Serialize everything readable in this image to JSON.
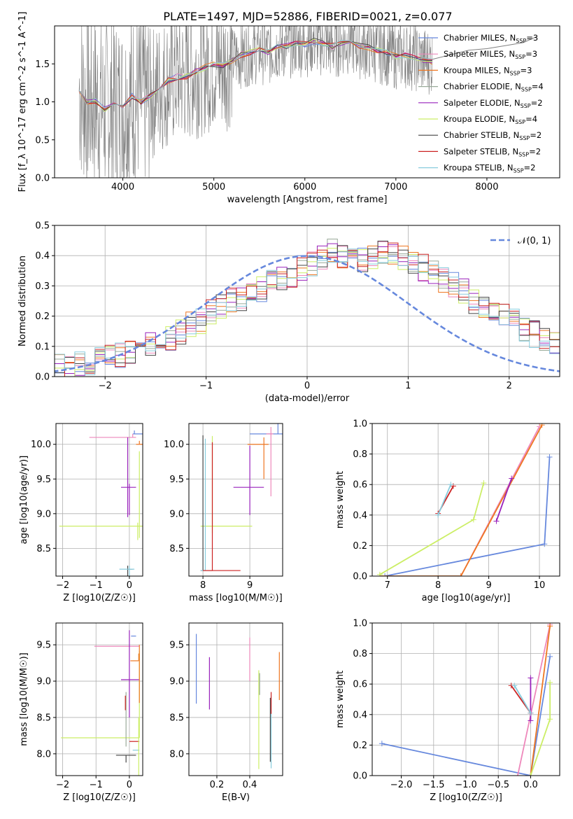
{
  "figure_title": "PLATE=1497, MJD=52886, FIBERID=0021, z=0.077",
  "series_names": [
    "Chabrier MILES, N_SSP=3",
    "Salpeter MILES, N_SSP=3",
    "Kroupa MILES, N_SSP=3",
    "Chabrier ELODIE, N_SSP=4",
    "Salpeter ELODIE, N_SSP=2",
    "Kroupa ELODIE, N_SSP=4",
    "Chabrier STELIB, N_SSP=2",
    "Salpeter STELIB, N_SSP=2",
    "Kroupa STELIB, N_SSP=2"
  ],
  "colors": {
    "chabrier_miles": "#6688dd",
    "salpeter_miles": "#ee88bb",
    "kroupa_miles": "#ee7722",
    "chabrier_elodie": "#99aa99",
    "salpeter_elodie": "#9922bb",
    "kroupa_elodie": "#ccee66",
    "chabrier_stelib": "#444444",
    "salpeter_stelib": "#cc2222",
    "kroupa_stelib": "#88ccdd",
    "data": "#808080",
    "normal": "#6688dd"
  },
  "chart_data": [
    {
      "id": "spectrum",
      "type": "line",
      "xlabel": "wavelength [Angstrom, rest frame]",
      "ylabel": "Flux [f_λ 10^-17 erg cm^-2 s^-1 A^-1]",
      "xlim": [
        3250,
        8800
      ],
      "ylim": [
        0,
        2.0
      ],
      "xticks": [
        4000,
        5000,
        6000,
        7000,
        8000
      ],
      "yticks": [
        0.0,
        0.5,
        1.0,
        1.5
      ],
      "legend_position": "upper right",
      "model_wavelength": [
        3520,
        3600,
        3700,
        3800,
        3900,
        4000,
        4100,
        4200,
        4300,
        4400,
        4500,
        4600,
        4700,
        4800,
        4900,
        5000,
        5100,
        5200,
        5300,
        5400,
        5500,
        5600,
        5700,
        5800,
        5900,
        6000,
        6100,
        6200,
        6300,
        6400,
        6500,
        6600,
        6700,
        6800,
        6900,
        7000,
        7100,
        7200,
        7300,
        7400
      ],
      "model_flux": [
        1.17,
        1.0,
        1.02,
        0.9,
        0.98,
        0.93,
        1.08,
        1.0,
        1.08,
        1.2,
        1.28,
        1.33,
        1.33,
        1.4,
        1.45,
        1.5,
        1.48,
        1.55,
        1.62,
        1.65,
        1.68,
        1.65,
        1.72,
        1.73,
        1.78,
        1.76,
        1.8,
        1.77,
        1.73,
        1.78,
        1.8,
        1.74,
        1.72,
        1.68,
        1.65,
        1.6,
        1.62,
        1.58,
        1.55,
        1.53
      ],
      "data_flux_tail_wavelength": [
        7400,
        7600,
        7800,
        8000,
        8200,
        8400,
        8550
      ],
      "data_flux_tail": [
        1.56,
        1.62,
        1.68,
        1.7,
        1.74,
        1.78,
        1.86
      ]
    },
    {
      "id": "residuals",
      "type": "bar",
      "xlabel": "(data-model)/error",
      "ylabel": "Normed distribution",
      "xlim": [
        -2.5,
        2.5
      ],
      "ylim": [
        0,
        0.5
      ],
      "xticks": [
        -2,
        -1,
        0,
        1,
        2
      ],
      "yticks": [
        0.0,
        0.1,
        0.2,
        0.3,
        0.4,
        0.5
      ],
      "grid": true,
      "legend": "𝒩(0, 1)",
      "bin_width": 0.1,
      "bins_start": -2.6,
      "hist_values": [
        0.02,
        0.03,
        0.03,
        0.04,
        0.05,
        0.06,
        0.06,
        0.07,
        0.08,
        0.09,
        0.11,
        0.12,
        0.13,
        0.15,
        0.17,
        0.18,
        0.21,
        0.23,
        0.25,
        0.26,
        0.28,
        0.29,
        0.31,
        0.33,
        0.33,
        0.36,
        0.37,
        0.39,
        0.41,
        0.4,
        0.39,
        0.39,
        0.4,
        0.41,
        0.4,
        0.39,
        0.38,
        0.36,
        0.34,
        0.32,
        0.3,
        0.28,
        0.25,
        0.23,
        0.21,
        0.2,
        0.18,
        0.15,
        0.14,
        0.12
      ],
      "hist_values_tail": [
        0.11,
        0.1,
        0.09,
        0.08,
        0.07,
        0.06,
        0.05,
        0.05,
        0.04,
        0.03,
        0.03,
        0.02
      ]
    },
    {
      "id": "age_vs_Z",
      "type": "scatter",
      "xlabel": "Z [log10(Z/Z☉)]",
      "ylabel": "age [log10(age/yr)]",
      "xlim": [
        -2.2,
        0.4
      ],
      "ylim": [
        8.1,
        10.3
      ],
      "xticks": [
        -2,
        -1,
        0
      ],
      "yticks": [
        8.5,
        9.0,
        9.5,
        10.0
      ]
    },
    {
      "id": "age_vs_mass",
      "type": "scatter",
      "xlabel": "mass [log10(M/M☉)]",
      "ylabel": "",
      "xlim": [
        7.7,
        9.7
      ],
      "ylim": [
        8.1,
        10.3
      ],
      "xticks": [
        8,
        9
      ],
      "yticks": [
        8.5,
        9.0,
        9.5,
        10.0
      ]
    },
    {
      "id": "massweight_vs_age",
      "type": "line",
      "xlabel": "age [log10(age/yr)]",
      "ylabel": "mass weight",
      "xlim": [
        6.7,
        10.4
      ],
      "ylim": [
        0,
        1.0
      ],
      "xticks": [
        7,
        8,
        9,
        10
      ],
      "yticks": [
        0.0,
        0.2,
        0.4,
        0.6,
        0.8,
        1.0
      ]
    },
    {
      "id": "mass_vs_Z",
      "type": "scatter",
      "xlabel": "Z [log10(Z/Z☉)]",
      "ylabel": "mass [log10(M/M☉)]",
      "xlim": [
        -2.2,
        0.4
      ],
      "ylim": [
        7.7,
        9.8
      ],
      "xticks": [
        -2,
        -1,
        0
      ],
      "yticks": [
        8.0,
        8.5,
        9.0,
        9.5
      ]
    },
    {
      "id": "mass_vs_ebv",
      "type": "scatter",
      "xlabel": "E(B-V)",
      "ylabel": "",
      "xlim": [
        0.03,
        0.6
      ],
      "ylim": [
        7.7,
        9.8
      ],
      "xticks": [
        0.2,
        0.4
      ],
      "yticks": [
        8.0,
        8.5,
        9.0,
        9.5
      ]
    },
    {
      "id": "massweight_vs_Z",
      "type": "line",
      "xlabel": "Z [log10(Z/Z☉)]",
      "ylabel": "mass weight",
      "xlim": [
        -2.45,
        0.45
      ],
      "ylim": [
        0,
        1.0
      ],
      "xticks": [
        -2.0,
        -1.5,
        -1.0,
        -0.5,
        0.0
      ],
      "yticks": [
        0.0,
        0.2,
        0.4,
        0.6,
        0.8,
        1.0
      ]
    }
  ],
  "fits": {
    "age_Z_mass": [
      {
        "c": "chabrier_miles",
        "age": [
          10.15,
          10.12,
          8.2
        ],
        "Z": [
          0.25,
          0.25,
          0.0
        ],
        "mass": [
          9.62,
          9.0,
          8.05
        ],
        "w": [
          0.78,
          0.0,
          0.21
        ]
      },
      {
        "c": "salpeter_miles",
        "age": [
          10.1,
          10.02
        ],
        "Z": [
          0.3,
          0.3
        ],
        "mass": [
          9.5,
          9.4
        ],
        "w": [
          0.99,
          0.0
        ]
      },
      {
        "c": "kroupa_miles",
        "age": [
          10.0,
          8.45
        ],
        "Z": [
          0.3,
          0.3
        ],
        "mass": [
          9.3,
          8.4
        ],
        "w": [
          0.98,
          0.0
        ]
      },
      {
        "c": "salpeter_elodie",
        "age": [
          9.4,
          9.15
        ],
        "Z": [
          0.0,
          0.0
        ],
        "mass": [
          9.0,
          8.2
        ],
        "w": [
          0.64,
          0.36
        ]
      },
      {
        "c": "kroupa_elodie",
        "age": [
          8.9,
          8.82,
          6.85
        ],
        "Z": [
          0.3,
          0.3,
          0.3
        ],
        "mass": [
          8.9,
          8.2,
          8.2
        ],
        "w": [
          0.61,
          0.37,
          0.02
        ]
      },
      {
        "c": "chabrier_stelib",
        "age": [
          8.25,
          8.0
        ],
        "Z": [
          -0.3,
          0.0
        ],
        "mass": [
          8.2,
          8.0
        ],
        "w": [
          0.59,
          0.41
        ]
      },
      {
        "c": "kroupa_stelib",
        "age": [
          8.3,
          8.0
        ],
        "Z": [
          -0.25,
          0.0
        ],
        "mass": [
          8.05,
          7.95
        ],
        "w": [
          0.59,
          0.41
        ]
      }
    ]
  }
}
